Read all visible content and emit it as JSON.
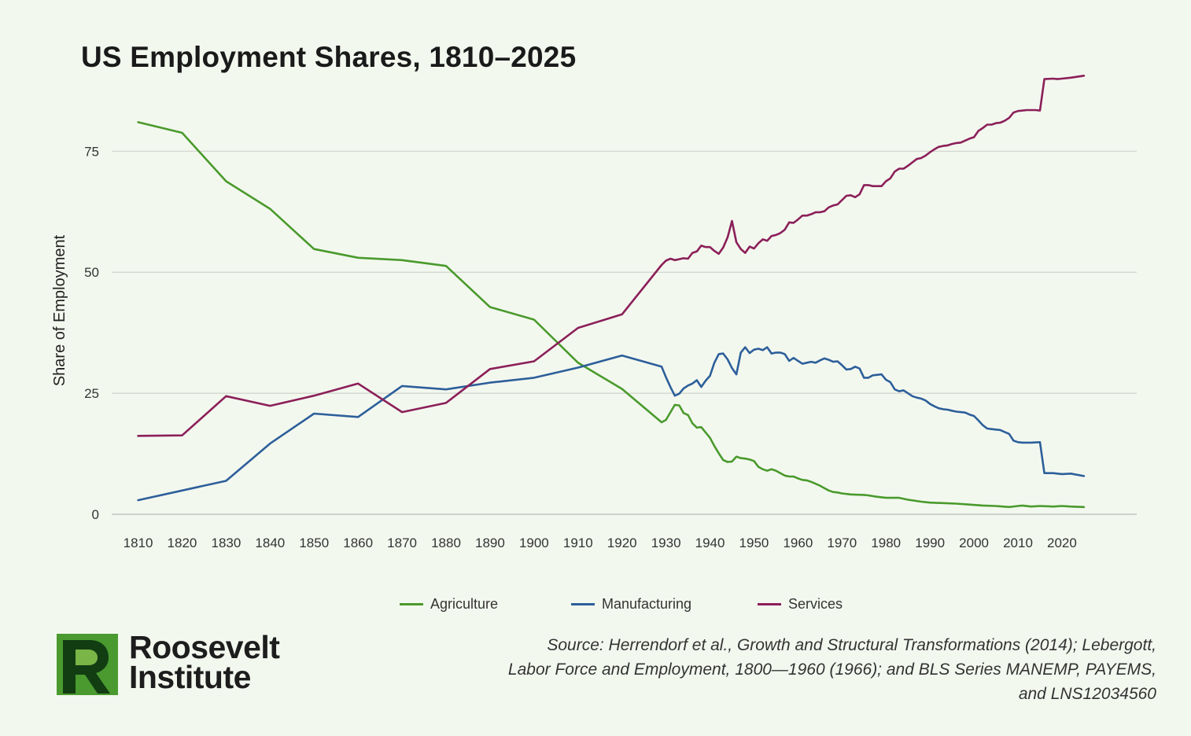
{
  "title": "US Employment Shares, 1810–2025",
  "source_lines": [
    "Source: Herrendorf et al., Growth and Structural Transformations (2014); Lebergott,",
    "Labor Force and Employment, 1800—1960 (1966); and BLS Series MANEMP, PAYEMS,",
    "and LNS12034560"
  ],
  "logo": {
    "line1": "Roosevelt",
    "line2": "Institute",
    "icon": "roosevelt-r-logo"
  },
  "chart_data": {
    "type": "line",
    "title": "US Employment Shares, 1810–2025",
    "xlabel": "",
    "ylabel": "Share of Employment",
    "xlim": [
      1804,
      2037
    ],
    "ylim": [
      0,
      90
    ],
    "x_ticks": [
      1810,
      1820,
      1830,
      1840,
      1850,
      1860,
      1870,
      1880,
      1890,
      1900,
      1910,
      1920,
      1930,
      1940,
      1950,
      1960,
      1970,
      1980,
      1990,
      2000,
      2010,
      2020
    ],
    "y_ticks": [
      0,
      25,
      50,
      75
    ],
    "grid": "horizontal",
    "legend_position": "bottom",
    "series": [
      {
        "name": "Agriculture",
        "color": "#4a9a2c",
        "points": [
          [
            1810,
            81
          ],
          [
            1820,
            78.8
          ],
          [
            1830,
            68.8
          ],
          [
            1840,
            63.1
          ],
          [
            1850,
            54.8
          ],
          [
            1860,
            53
          ],
          [
            1870,
            52.5
          ],
          [
            1880,
            51.3
          ],
          [
            1890,
            42.8
          ],
          [
            1900,
            40.2
          ],
          [
            1910,
            31.3
          ],
          [
            1920,
            25.9
          ],
          [
            1929,
            19
          ],
          [
            1930,
            19.5
          ],
          [
            1932,
            22.6
          ],
          [
            1933,
            22.5
          ],
          [
            1934,
            20.9
          ],
          [
            1935,
            20.5
          ],
          [
            1936,
            18.8
          ],
          [
            1937,
            17.9
          ],
          [
            1938,
            18
          ],
          [
            1940,
            15.8
          ],
          [
            1941,
            14.1
          ],
          [
            1942,
            12.6
          ],
          [
            1943,
            11.2
          ],
          [
            1944,
            10.8
          ],
          [
            1945,
            10.9
          ],
          [
            1946,
            11.9
          ],
          [
            1947,
            11.6
          ],
          [
            1948,
            11.5
          ],
          [
            1949,
            11.3
          ],
          [
            1950,
            11
          ],
          [
            1951,
            9.8
          ],
          [
            1952,
            9.3
          ],
          [
            1953,
            9
          ],
          [
            1954,
            9.3
          ],
          [
            1955,
            9
          ],
          [
            1956,
            8.5
          ],
          [
            1957,
            8
          ],
          [
            1958,
            7.8
          ],
          [
            1959,
            7.8
          ],
          [
            1960,
            7.4
          ],
          [
            1961,
            7.1
          ],
          [
            1962,
            7
          ],
          [
            1963,
            6.7
          ],
          [
            1964,
            6.3
          ],
          [
            1965,
            5.9
          ],
          [
            1966,
            5.4
          ],
          [
            1967,
            4.9
          ],
          [
            1968,
            4.6
          ],
          [
            1969,
            4.5
          ],
          [
            1970,
            4.3
          ],
          [
            1972,
            4.1
          ],
          [
            1975,
            4
          ],
          [
            1976,
            3.9
          ],
          [
            1978,
            3.6
          ],
          [
            1980,
            3.4
          ],
          [
            1983,
            3.4
          ],
          [
            1985,
            3
          ],
          [
            1988,
            2.6
          ],
          [
            1990,
            2.4
          ],
          [
            1993,
            2.3
          ],
          [
            1996,
            2.2
          ],
          [
            1999,
            2
          ],
          [
            2002,
            1.8
          ],
          [
            2005,
            1.7
          ],
          [
            2008,
            1.5
          ],
          [
            2010,
            1.7
          ],
          [
            2011,
            1.8
          ],
          [
            2013,
            1.6
          ],
          [
            2015,
            1.7
          ],
          [
            2018,
            1.6
          ],
          [
            2020,
            1.7
          ],
          [
            2022,
            1.6
          ],
          [
            2025,
            1.5
          ]
        ]
      },
      {
        "name": "Manufacturing",
        "color": "#2d5f9a",
        "points": [
          [
            1810,
            2.9
          ],
          [
            1820,
            4.9
          ],
          [
            1830,
            6.9
          ],
          [
            1840,
            14.6
          ],
          [
            1850,
            20.8
          ],
          [
            1860,
            20.1
          ],
          [
            1870,
            26.5
          ],
          [
            1880,
            25.8
          ],
          [
            1890,
            27.2
          ],
          [
            1900,
            28.2
          ],
          [
            1910,
            30.3
          ],
          [
            1920,
            32.8
          ],
          [
            1929,
            30.5
          ],
          [
            1930,
            28.3
          ],
          [
            1931,
            26.3
          ],
          [
            1932,
            24.5
          ],
          [
            1933,
            24.9
          ],
          [
            1934,
            26
          ],
          [
            1935,
            26.6
          ],
          [
            1936,
            27
          ],
          [
            1937,
            27.7
          ],
          [
            1938,
            26.3
          ],
          [
            1939,
            27.6
          ],
          [
            1940,
            28.6
          ],
          [
            1941,
            31.3
          ],
          [
            1942,
            33.1
          ],
          [
            1943,
            33.2
          ],
          [
            1944,
            32
          ],
          [
            1945,
            30.2
          ],
          [
            1946,
            28.9
          ],
          [
            1947,
            33.4
          ],
          [
            1948,
            34.5
          ],
          [
            1949,
            33.3
          ],
          [
            1950,
            34
          ],
          [
            1951,
            34.2
          ],
          [
            1952,
            33.9
          ],
          [
            1953,
            34.5
          ],
          [
            1954,
            33.2
          ],
          [
            1955,
            33.4
          ],
          [
            1956,
            33.4
          ],
          [
            1957,
            33.1
          ],
          [
            1958,
            31.7
          ],
          [
            1959,
            32.3
          ],
          [
            1960,
            31.7
          ],
          [
            1961,
            31.1
          ],
          [
            1962,
            31.3
          ],
          [
            1963,
            31.5
          ],
          [
            1964,
            31.3
          ],
          [
            1965,
            31.8
          ],
          [
            1966,
            32.2
          ],
          [
            1967,
            31.9
          ],
          [
            1968,
            31.5
          ],
          [
            1969,
            31.6
          ],
          [
            1970,
            30.8
          ],
          [
            1971,
            29.9
          ],
          [
            1972,
            30
          ],
          [
            1973,
            30.5
          ],
          [
            1974,
            30.1
          ],
          [
            1975,
            28.2
          ],
          [
            1976,
            28.2
          ],
          [
            1977,
            28.7
          ],
          [
            1978,
            28.8
          ],
          [
            1979,
            28.9
          ],
          [
            1980,
            27.8
          ],
          [
            1981,
            27.3
          ],
          [
            1982,
            25.8
          ],
          [
            1983,
            25.4
          ],
          [
            1984,
            25.6
          ],
          [
            1985,
            25
          ],
          [
            1986,
            24.4
          ],
          [
            1987,
            24.1
          ],
          [
            1988,
            23.9
          ],
          [
            1989,
            23.5
          ],
          [
            1990,
            22.8
          ],
          [
            1991,
            22.3
          ],
          [
            1992,
            21.9
          ],
          [
            1993,
            21.7
          ],
          [
            1994,
            21.6
          ],
          [
            1995,
            21.4
          ],
          [
            1996,
            21.2
          ],
          [
            1997,
            21.1
          ],
          [
            1998,
            21
          ],
          [
            1999,
            20.6
          ],
          [
            2000,
            20.3
          ],
          [
            2001,
            19.4
          ],
          [
            2002,
            18.4
          ],
          [
            2003,
            17.7
          ],
          [
            2004,
            17.6
          ],
          [
            2005,
            17.5
          ],
          [
            2006,
            17.4
          ],
          [
            2007,
            17
          ],
          [
            2008,
            16.6
          ],
          [
            2009,
            15.2
          ],
          [
            2010,
            14.9
          ],
          [
            2011,
            14.8
          ],
          [
            2013,
            14.8
          ],
          [
            2015,
            14.9
          ],
          [
            2016,
            8.5
          ],
          [
            2018,
            8.5
          ],
          [
            2020,
            8.3
          ],
          [
            2022,
            8.4
          ],
          [
            2025,
            7.9
          ]
        ]
      },
      {
        "name": "Services",
        "color": "#8b1f58",
        "points": [
          [
            1810,
            16.2
          ],
          [
            1820,
            16.3
          ],
          [
            1830,
            24.4
          ],
          [
            1840,
            22.4
          ],
          [
            1850,
            24.5
          ],
          [
            1860,
            27
          ],
          [
            1870,
            21.1
          ],
          [
            1880,
            23
          ],
          [
            1890,
            30
          ],
          [
            1900,
            31.6
          ],
          [
            1910,
            38.5
          ],
          [
            1920,
            41.3
          ],
          [
            1929,
            51.5
          ],
          [
            1930,
            52.4
          ],
          [
            1931,
            52.8
          ],
          [
            1932,
            52.5
          ],
          [
            1933,
            52.7
          ],
          [
            1934,
            52.9
          ],
          [
            1935,
            52.8
          ],
          [
            1936,
            54
          ],
          [
            1937,
            54.3
          ],
          [
            1938,
            55.5
          ],
          [
            1939,
            55.2
          ],
          [
            1940,
            55.2
          ],
          [
            1941,
            54.4
          ],
          [
            1942,
            53.8
          ],
          [
            1943,
            55.1
          ],
          [
            1944,
            57.2
          ],
          [
            1945,
            60.6
          ],
          [
            1946,
            56.2
          ],
          [
            1947,
            54.8
          ],
          [
            1948,
            54
          ],
          [
            1949,
            55.3
          ],
          [
            1950,
            54.9
          ],
          [
            1951,
            56
          ],
          [
            1952,
            56.8
          ],
          [
            1953,
            56.5
          ],
          [
            1954,
            57.5
          ],
          [
            1955,
            57.7
          ],
          [
            1956,
            58.1
          ],
          [
            1957,
            58.8
          ],
          [
            1958,
            60.3
          ],
          [
            1959,
            60.2
          ],
          [
            1960,
            60.9
          ],
          [
            1961,
            61.7
          ],
          [
            1962,
            61.7
          ],
          [
            1963,
            62
          ],
          [
            1964,
            62.4
          ],
          [
            1965,
            62.4
          ],
          [
            1966,
            62.6
          ],
          [
            1967,
            63.4
          ],
          [
            1968,
            63.8
          ],
          [
            1969,
            64
          ],
          [
            1970,
            64.9
          ],
          [
            1971,
            65.8
          ],
          [
            1972,
            65.9
          ],
          [
            1973,
            65.5
          ],
          [
            1974,
            66.1
          ],
          [
            1975,
            68
          ],
          [
            1976,
            68
          ],
          [
            1977,
            67.8
          ],
          [
            1978,
            67.8
          ],
          [
            1979,
            67.8
          ],
          [
            1980,
            68.8
          ],
          [
            1981,
            69.4
          ],
          [
            1982,
            70.8
          ],
          [
            1983,
            71.4
          ],
          [
            1984,
            71.4
          ],
          [
            1985,
            72
          ],
          [
            1986,
            72.7
          ],
          [
            1987,
            73.4
          ],
          [
            1988,
            73.6
          ],
          [
            1989,
            74.1
          ],
          [
            1990,
            74.8
          ],
          [
            1991,
            75.4
          ],
          [
            1992,
            75.9
          ],
          [
            1993,
            76.1
          ],
          [
            1994,
            76.2
          ],
          [
            1995,
            76.5
          ],
          [
            1996,
            76.7
          ],
          [
            1997,
            76.8
          ],
          [
            1998,
            77.2
          ],
          [
            1999,
            77.6
          ],
          [
            2000,
            77.9
          ],
          [
            2001,
            79.2
          ],
          [
            2002,
            79.8
          ],
          [
            2003,
            80.5
          ],
          [
            2004,
            80.5
          ],
          [
            2005,
            80.8
          ],
          [
            2006,
            80.9
          ],
          [
            2007,
            81.3
          ],
          [
            2008,
            81.9
          ],
          [
            2009,
            83
          ],
          [
            2010,
            83.3
          ],
          [
            2012,
            83.5
          ],
          [
            2014,
            83.5
          ],
          [
            2015,
            83.4
          ],
          [
            2016,
            89.9
          ],
          [
            2018,
            90
          ],
          [
            2019,
            89.9
          ],
          [
            2020,
            90
          ],
          [
            2022,
            90.2
          ],
          [
            2025,
            90.6
          ]
        ]
      }
    ]
  }
}
